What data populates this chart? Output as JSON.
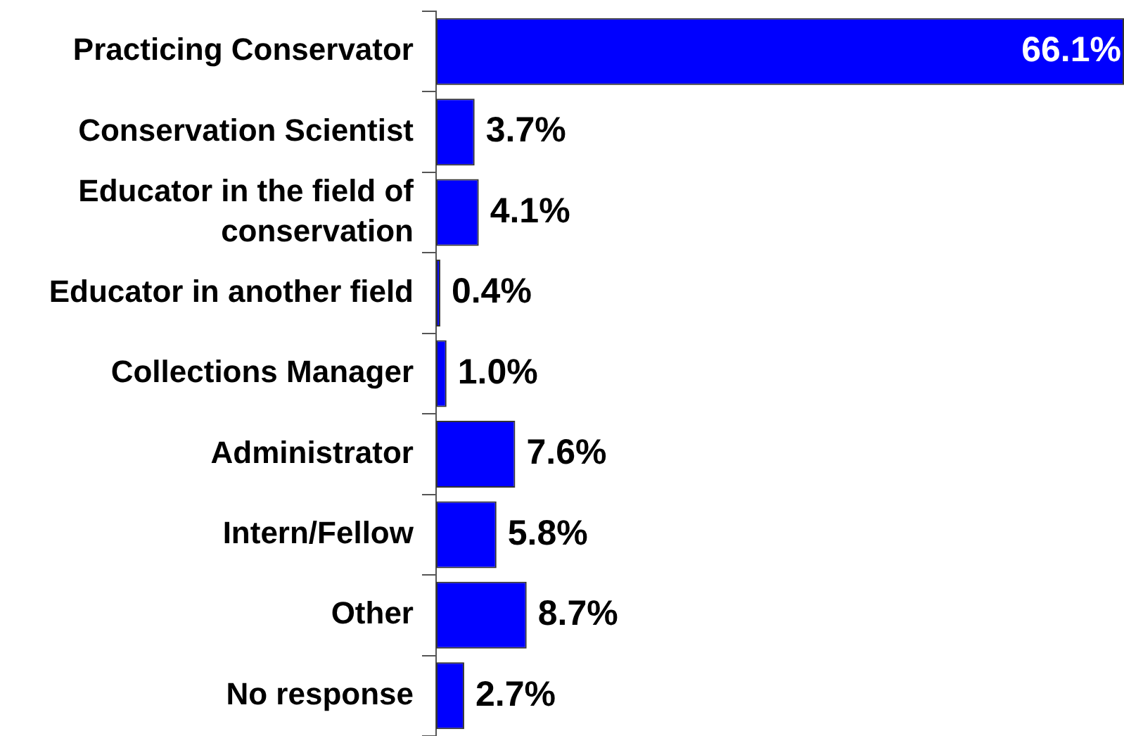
{
  "chart_data": {
    "type": "bar",
    "orientation": "horizontal",
    "categories": [
      "Practicing Conservator",
      "Conservation Scientist",
      "Educator in the field of conservation",
      "Educator in another field",
      "Collections Manager",
      "Administrator",
      "Intern/Fellow",
      "Other",
      "No response"
    ],
    "values": [
      66.1,
      3.7,
      4.1,
      0.4,
      1.0,
      7.6,
      5.8,
      8.7,
      2.7
    ],
    "value_labels": [
      "66.1%",
      "3.7%",
      "4.1%",
      "0.4%",
      "1.0%",
      "7.6%",
      "5.8%",
      "8.7%",
      "2.7%"
    ],
    "color": "#0000ff",
    "xlim": [
      0,
      66.1
    ],
    "tick_labels": "y",
    "grid": false,
    "legend": false
  }
}
